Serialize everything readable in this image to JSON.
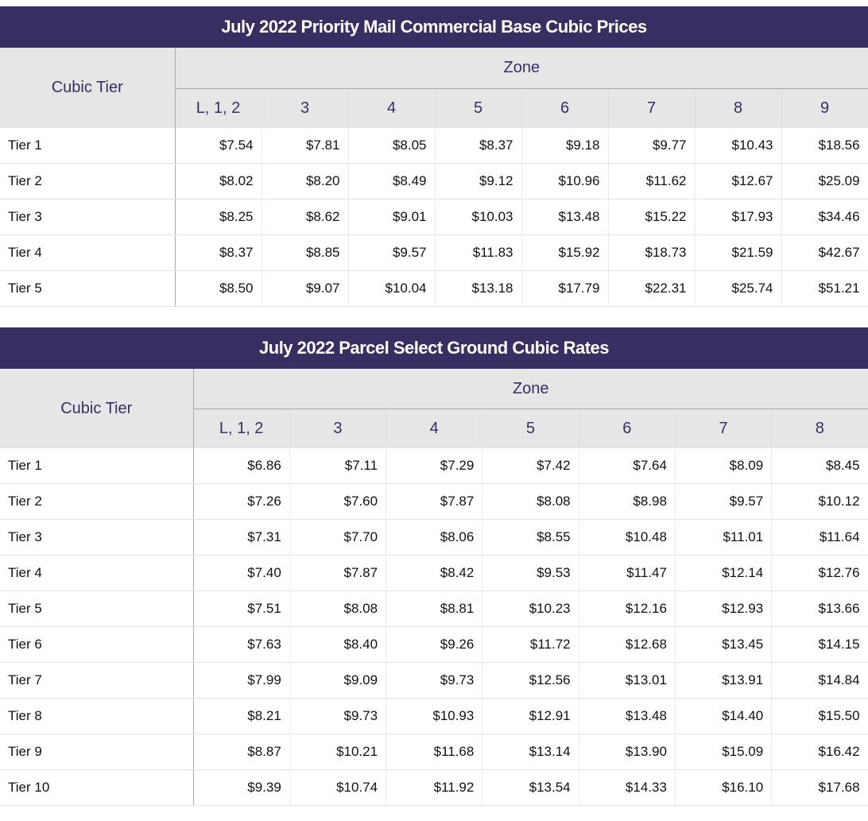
{
  "tables": [
    {
      "title": "July 2022 Priority Mail Commercial Base Cubic Prices",
      "tier_header": "Cubic Tier",
      "zone_header": "Zone",
      "zones": [
        "L, 1, 2",
        "3",
        "4",
        "5",
        "6",
        "7",
        "8",
        "9"
      ],
      "rows": [
        {
          "tier": "Tier 1",
          "prices": [
            "$7.54",
            "$7.81",
            "$8.05",
            "$8.37",
            "$9.18",
            "$9.77",
            "$10.43",
            "$18.56"
          ]
        },
        {
          "tier": "Tier 2",
          "prices": [
            "$8.02",
            "$8.20",
            "$8.49",
            "$9.12",
            "$10.96",
            "$11.62",
            "$12.67",
            "$25.09"
          ]
        },
        {
          "tier": "Tier 3",
          "prices": [
            "$8.25",
            "$8.62",
            "$9.01",
            "$10.03",
            "$13.48",
            "$15.22",
            "$17.93",
            "$34.46"
          ]
        },
        {
          "tier": "Tier 4",
          "prices": [
            "$8.37",
            "$8.85",
            "$9.57",
            "$11.83",
            "$15.92",
            "$18.73",
            "$21.59",
            "$42.67"
          ]
        },
        {
          "tier": "Tier 5",
          "prices": [
            "$8.50",
            "$9.07",
            "$10.04",
            "$13.18",
            "$17.79",
            "$22.31",
            "$25.74",
            "$51.21"
          ]
        }
      ]
    },
    {
      "title": "July 2022 Parcel Select Ground Cubic Rates",
      "tier_header": "Cubic Tier",
      "zone_header": "Zone",
      "zones": [
        "L, 1, 2",
        "3",
        "4",
        "5",
        "6",
        "7",
        "8"
      ],
      "rows": [
        {
          "tier": "Tier 1",
          "prices": [
            "$6.86",
            "$7.11",
            "$7.29",
            "$7.42",
            "$7.64",
            "$8.09",
            "$8.45"
          ]
        },
        {
          "tier": "Tier 2",
          "prices": [
            "$7.26",
            "$7.60",
            "$7.87",
            "$8.08",
            "$8.98",
            "$9.57",
            "$10.12"
          ]
        },
        {
          "tier": "Tier 3",
          "prices": [
            "$7.31",
            "$7.70",
            "$8.06",
            "$8.55",
            "$10.48",
            "$11.01",
            "$11.64"
          ]
        },
        {
          "tier": "Tier 4",
          "prices": [
            "$7.40",
            "$7.87",
            "$8.42",
            "$9.53",
            "$11.47",
            "$12.14",
            "$12.76"
          ]
        },
        {
          "tier": "Tier 5",
          "prices": [
            "$7.51",
            "$8.08",
            "$8.81",
            "$10.23",
            "$12.16",
            "$12.93",
            "$13.66"
          ]
        },
        {
          "tier": "Tier 6",
          "prices": [
            "$7.63",
            "$8.40",
            "$9.26",
            "$11.72",
            "$12.68",
            "$13.45",
            "$14.15"
          ]
        },
        {
          "tier": "Tier 7",
          "prices": [
            "$7.99",
            "$9.09",
            "$9.73",
            "$12.56",
            "$13.01",
            "$13.91",
            "$14.84"
          ]
        },
        {
          "tier": "Tier 8",
          "prices": [
            "$8.21",
            "$9.73",
            "$10.93",
            "$12.91",
            "$13.48",
            "$14.40",
            "$15.50"
          ]
        },
        {
          "tier": "Tier 9",
          "prices": [
            "$8.87",
            "$10.21",
            "$11.68",
            "$13.14",
            "$13.90",
            "$15.09",
            "$16.42"
          ]
        },
        {
          "tier": "Tier 10",
          "prices": [
            "$9.39",
            "$10.74",
            "$11.92",
            "$13.54",
            "$14.33",
            "$16.10",
            "$17.68"
          ]
        }
      ]
    }
  ],
  "colors": {
    "header_bg": "#382e62",
    "subheader_bg": "#e6e6e6",
    "header_text": "#382e62"
  }
}
